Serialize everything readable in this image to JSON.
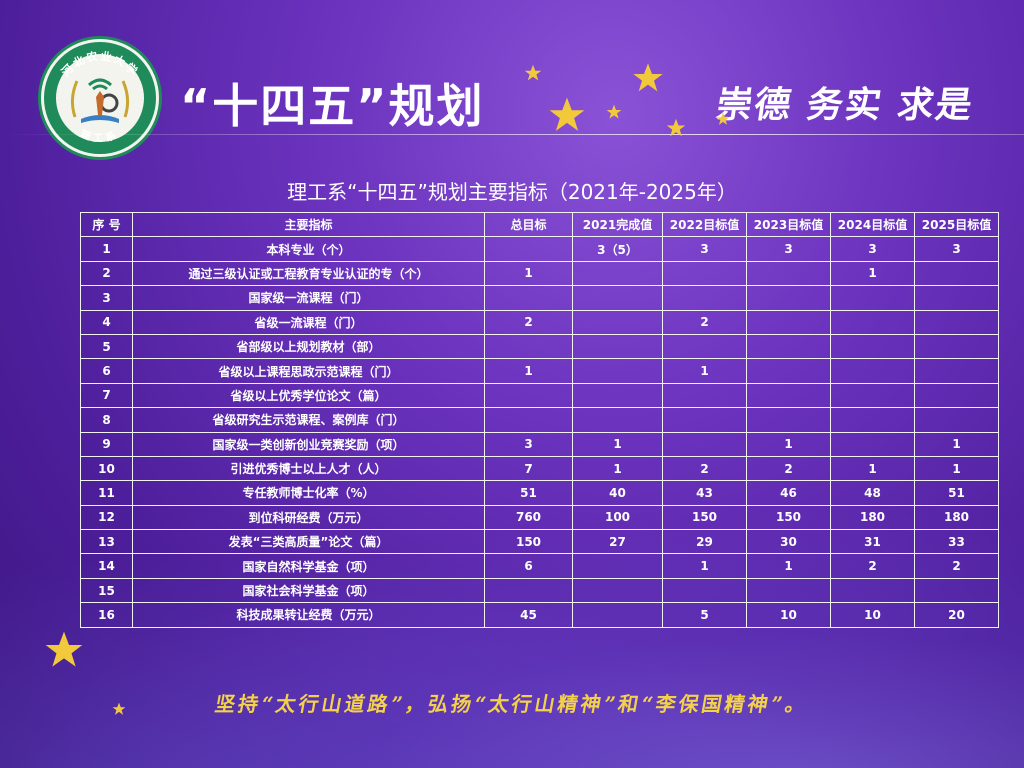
{
  "header": {
    "logo_text_top": "河北农业大学",
    "logo_text_bottom": "理工系",
    "title": "“十四五”规划",
    "motto": "崇德 务实 求是"
  },
  "table_title": "理工系“十四五”规划主要指标（2021年-2025年）",
  "table": {
    "headers": [
      "序 号",
      "主要指标",
      "总目标",
      "2021完成值",
      "2022目标值",
      "2023目标值",
      "2024目标值",
      "2025目标值"
    ],
    "rows": [
      [
        "1",
        "本科专业（个）",
        "",
        "3（5）",
        "3",
        "3",
        "3",
        "3"
      ],
      [
        "2",
        "通过三级认证或工程教育专业认证的专（个）",
        "1",
        "",
        "",
        "",
        "1",
        ""
      ],
      [
        "3",
        "国家级一流课程（门）",
        "",
        "",
        "",
        "",
        "",
        ""
      ],
      [
        "4",
        "省级一流课程（门）",
        "2",
        "",
        "2",
        "",
        "",
        ""
      ],
      [
        "5",
        "省部级以上规划教材（部）",
        "",
        "",
        "",
        "",
        "",
        ""
      ],
      [
        "6",
        "省级以上课程思政示范课程（门）",
        "1",
        "",
        "1",
        "",
        "",
        ""
      ],
      [
        "7",
        "省级以上优秀学位论文（篇）",
        "",
        "",
        "",
        "",
        "",
        ""
      ],
      [
        "8",
        "省级研究生示范课程、案例库（门）",
        "",
        "",
        "",
        "",
        "",
        ""
      ],
      [
        "9",
        "国家级一类创新创业竞赛奖励（项）",
        "3",
        "1",
        "",
        "1",
        "",
        "1"
      ],
      [
        "10",
        "引进优秀博士以上人才（人）",
        "7",
        "1",
        "2",
        "2",
        "1",
        "1"
      ],
      [
        "11",
        "专任教师博士化率（%）",
        "51",
        "40",
        "43",
        "46",
        "48",
        "51"
      ],
      [
        "12",
        "到位科研经费（万元）",
        "760",
        "100",
        "150",
        "150",
        "180",
        "180"
      ],
      [
        "13",
        "发表“三类高质量”论文（篇）",
        "150",
        "27",
        "29",
        "30",
        "31",
        "33"
      ],
      [
        "14",
        "国家自然科学基金（项）",
        "6",
        "",
        "1",
        "1",
        "2",
        "2"
      ],
      [
        "15",
        "国家社会科学基金（项）",
        "",
        "",
        "",
        "",
        "",
        ""
      ],
      [
        "16",
        "科技成果转让经费（万元）",
        "45",
        "",
        "5",
        "10",
        "10",
        "20"
      ]
    ]
  },
  "slogan": "坚持“太行山道路”，弘扬“太行山精神”和“李保国精神”。",
  "colors": {
    "background": "#5a2aad",
    "star": "#f3c93c",
    "slogan": "#f3d14a",
    "logo_ring": "#1f8a5a"
  }
}
